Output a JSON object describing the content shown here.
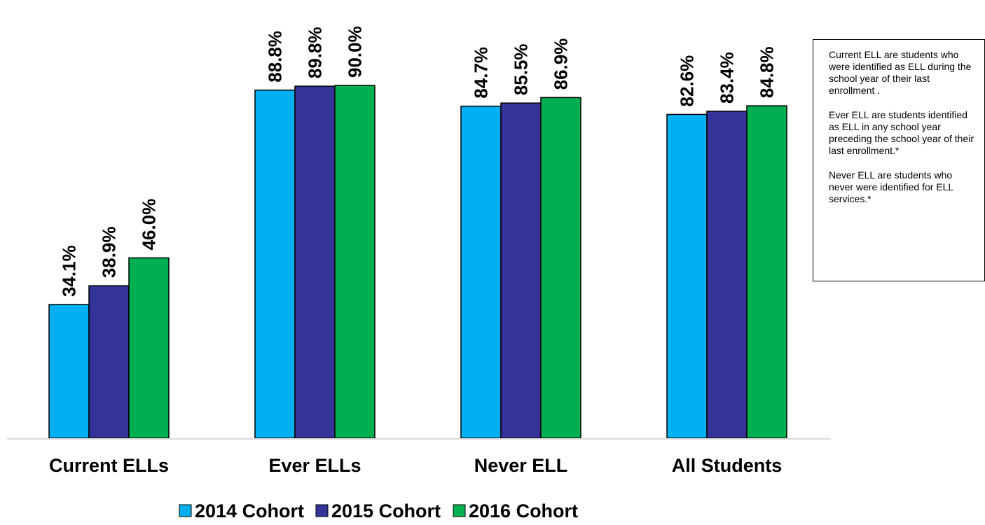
{
  "chart_data": {
    "type": "bar",
    "categories": [
      "Current ELLs",
      "Ever ELLs",
      "Never ELL",
      "All Students"
    ],
    "series": [
      {
        "name": "2014 Cohort",
        "color": "#00B0F0",
        "values": [
          34.1,
          88.8,
          84.7,
          82.6
        ],
        "labels": [
          "34.1%",
          "88.8%",
          "84.7%",
          "82.6%"
        ]
      },
      {
        "name": "2015 Cohort",
        "color": "#333399",
        "values": [
          38.9,
          89.8,
          85.5,
          83.4
        ],
        "labels": [
          "38.9%",
          "89.8%",
          "85.5%",
          "83.4%"
        ]
      },
      {
        "name": "2016 Cohort",
        "color": "#00B050",
        "values": [
          46.0,
          90.0,
          86.9,
          84.8
        ],
        "labels": [
          "46.0%",
          "90.0%",
          "86.9%",
          "84.8%"
        ]
      }
    ],
    "title": "",
    "xlabel": "",
    "ylabel": "",
    "ylim": [
      0,
      100
    ],
    "legend": "bottom",
    "grid": false
  },
  "notes": [
    "Current ELL are students who were identified as ELL during the school year of their last enrollment .",
    "Ever ELL are students identified as ELL in any school year preceding the school year of their last enrollment.*",
    "Never ELL are students who never were identified for ELL services.*"
  ]
}
